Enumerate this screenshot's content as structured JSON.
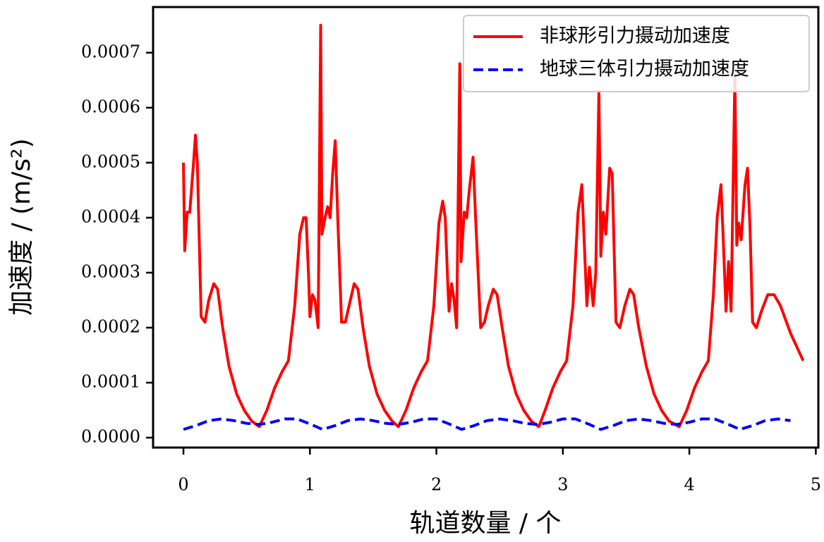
{
  "chart_data": {
    "type": "line",
    "xlabel": "轨道数量 / 个",
    "ylabel": "加速度 / (m/s²)",
    "xlim": [
      -0.24,
      5.02
    ],
    "ylim": [
      -1.8e-05,
      0.000783
    ],
    "xticks": [
      0,
      1,
      2,
      3,
      4,
      5
    ],
    "yticks": [
      {
        "value": 0,
        "label": "0.0000"
      },
      {
        "value": 0.0001,
        "label": "0.0001"
      },
      {
        "value": 0.0002,
        "label": "0.0002"
      },
      {
        "value": 0.0003,
        "label": "0.0003"
      },
      {
        "value": 0.0004,
        "label": "0.0004"
      },
      {
        "value": 0.0005,
        "label": "0.0005"
      },
      {
        "value": 0.0006,
        "label": "0.0006"
      },
      {
        "value": 0.0007,
        "label": "0.0007"
      }
    ],
    "legend": "upper right",
    "series": [
      {
        "name": "非球形引力摄动加速度",
        "color": "#ff0000",
        "dash": "solid",
        "x": [
          0,
          0.01,
          0.03,
          0.05,
          0.08,
          0.095,
          0.11,
          0.14,
          0.17,
          0.2,
          0.24,
          0.27,
          0.31,
          0.36,
          0.42,
          0.48,
          0.54,
          0.6,
          0.66,
          0.72,
          0.78,
          0.83,
          0.88,
          0.92,
          0.95,
          0.97,
          0.99,
          1.0,
          1.02,
          1.04,
          1.065,
          1.085,
          1.095,
          1.12,
          1.14,
          1.16,
          1.18,
          1.2,
          1.22,
          1.25,
          1.28,
          1.31,
          1.35,
          1.38,
          1.42,
          1.47,
          1.53,
          1.59,
          1.65,
          1.7,
          1.76,
          1.82,
          1.88,
          1.93,
          1.98,
          2.02,
          2.05,
          2.07,
          2.09,
          2.1,
          2.12,
          2.14,
          2.16,
          2.185,
          2.195,
          2.22,
          2.24,
          2.26,
          2.29,
          2.31,
          2.35,
          2.38,
          2.41,
          2.45,
          2.48,
          2.52,
          2.57,
          2.63,
          2.69,
          2.75,
          2.81,
          2.86,
          2.92,
          2.98,
          3.03,
          3.08,
          3.12,
          3.15,
          3.17,
          3.19,
          3.21,
          3.24,
          3.26,
          3.285,
          3.3,
          3.32,
          3.34,
          3.37,
          3.39,
          3.42,
          3.45,
          3.49,
          3.53,
          3.56,
          3.6,
          3.66,
          3.72,
          3.78,
          3.84,
          3.92,
          3.98,
          4.04,
          4.1,
          4.15,
          4.19,
          4.22,
          4.25,
          4.27,
          4.29,
          4.31,
          4.33,
          4.36,
          4.375,
          4.39,
          4.41,
          4.44,
          4.46,
          4.48,
          4.5,
          4.53,
          4.57,
          4.62,
          4.67,
          4.72,
          4.8,
          4.9
        ],
        "values": [
          0.0005,
          0.00034,
          0.00041,
          0.00041,
          0.0005,
          0.00055,
          0.0005,
          0.00022,
          0.00021,
          0.00025,
          0.00028,
          0.00027,
          0.0002,
          0.00013,
          8e-05,
          5e-05,
          3e-05,
          2e-05,
          5e-05,
          9e-05,
          0.00012,
          0.00014,
          0.00024,
          0.00037,
          0.0004,
          0.0004,
          0.00029,
          0.00022,
          0.00026,
          0.00025,
          0.0002,
          0.00075,
          0.00037,
          0.0004,
          0.00042,
          0.0004,
          0.00048,
          0.00054,
          0.0004,
          0.00021,
          0.00021,
          0.00024,
          0.00028,
          0.00027,
          0.0002,
          0.00013,
          8e-05,
          5e-05,
          3e-05,
          2e-05,
          5e-05,
          9e-05,
          0.00012,
          0.00014,
          0.00024,
          0.00039,
          0.00043,
          0.0004,
          0.00028,
          0.00023,
          0.00028,
          0.00025,
          0.0002,
          0.00068,
          0.00032,
          0.00041,
          0.0004,
          0.00045,
          0.00051,
          0.0004,
          0.0002,
          0.00021,
          0.00024,
          0.00027,
          0.00026,
          0.0002,
          0.00013,
          8e-05,
          5e-05,
          3e-05,
          2e-05,
          5e-05,
          9e-05,
          0.00012,
          0.00014,
          0.00024,
          0.00041,
          0.00046,
          0.00035,
          0.00024,
          0.00031,
          0.00024,
          0.0003,
          0.00063,
          0.00033,
          0.00041,
          0.00037,
          0.00049,
          0.00048,
          0.00021,
          0.0002,
          0.00024,
          0.00027,
          0.00026,
          0.0002,
          0.00013,
          8e-05,
          5e-05,
          3e-05,
          2e-05,
          5e-05,
          9e-05,
          0.00012,
          0.00014,
          0.00026,
          0.0004,
          0.00046,
          0.00035,
          0.00023,
          0.00032,
          0.00023,
          0.00066,
          0.00035,
          0.00039,
          0.00036,
          0.00046,
          0.00049,
          0.00038,
          0.00021,
          0.0002,
          0.00023,
          0.00026,
          0.00026,
          0.00024,
          0.00019,
          0.00014
        ]
      },
      {
        "name": "地球三体引力摄动加速度",
        "color": "#0000ff",
        "dash": "dashed",
        "x": [
          0,
          0.1,
          0.2,
          0.3,
          0.4,
          0.5,
          0.6,
          0.7,
          0.8,
          0.9,
          1.0,
          1.1,
          1.2,
          1.3,
          1.4,
          1.5,
          1.6,
          1.7,
          1.8,
          1.9,
          2.0,
          2.1,
          2.2,
          2.3,
          2.4,
          2.5,
          2.6,
          2.7,
          2.8,
          2.9,
          3.0,
          3.1,
          3.2,
          3.3,
          3.4,
          3.5,
          3.6,
          3.7,
          3.8,
          3.9,
          4.0,
          4.1,
          4.2,
          4.3,
          4.4,
          4.5,
          4.6,
          4.7,
          4.8
        ],
        "values": [
          1.5e-05,
          2.2e-05,
          3.1e-05,
          3.4e-05,
          3.1e-05,
          2.6e-05,
          2.4e-05,
          2.8e-05,
          3.4e-05,
          3.4e-05,
          2.5e-05,
          1.5e-05,
          2.2e-05,
          3.1e-05,
          3.4e-05,
          3.1e-05,
          2.6e-05,
          2.4e-05,
          2.8e-05,
          3.4e-05,
          3.4e-05,
          2.5e-05,
          1.5e-05,
          2.2e-05,
          3.1e-05,
          3.4e-05,
          3.1e-05,
          2.6e-05,
          2.4e-05,
          2.8e-05,
          3.4e-05,
          3.4e-05,
          2.5e-05,
          1.5e-05,
          2.2e-05,
          3.1e-05,
          3.4e-05,
          3.1e-05,
          2.6e-05,
          2.4e-05,
          2.8e-05,
          3.4e-05,
          3.4e-05,
          2.5e-05,
          1.5e-05,
          2.2e-05,
          3.1e-05,
          3.4e-05,
          3.1e-05
        ]
      }
    ]
  }
}
